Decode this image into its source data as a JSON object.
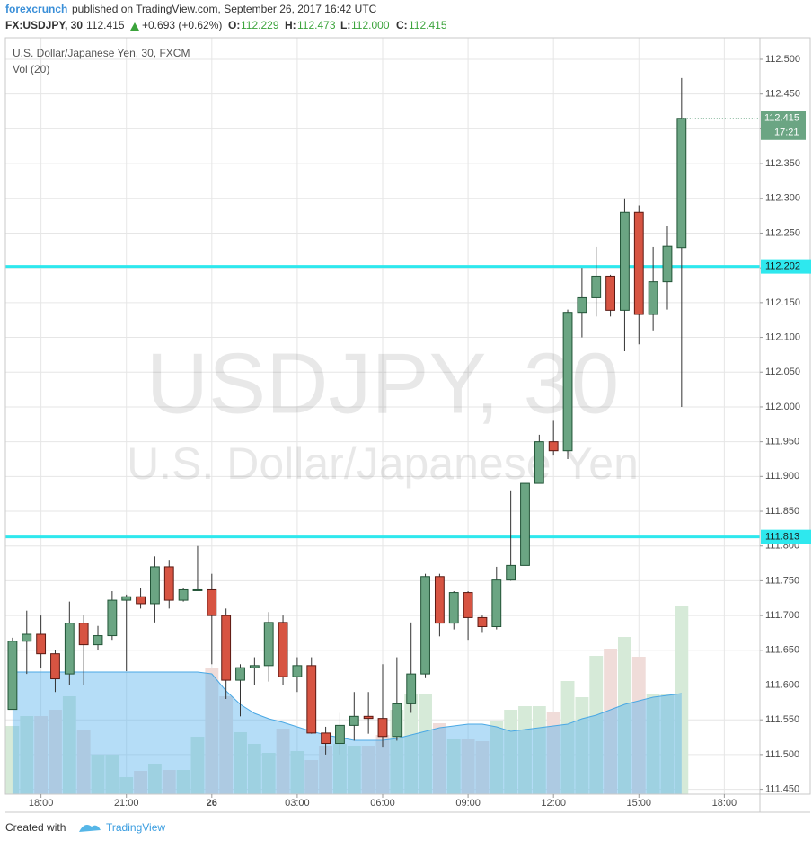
{
  "header": {
    "publisher": "forexcrunch",
    "published": "published on TradingView.com, September 26, 2017 16:42 UTC",
    "symbol": "FX:USDJPY, 30",
    "last": "112.415",
    "change": "+0.693 (+0.62%)",
    "o_label": "O:",
    "o": "112.229",
    "h_label": "H:",
    "h": "112.473",
    "l_label": "L:",
    "l": "112.000",
    "c_label": "C:",
    "c": "112.415"
  },
  "chart_data": {
    "type": "candlestick",
    "legend_title": "U.S. Dollar/Japanese Yen, 30, FXCM",
    "volume_title": "Vol (20)",
    "watermark": "USDJPY, 30",
    "watermark_sub": "U.S. Dollar/Japanese Yen",
    "open": [
      111.565,
      111.663,
      111.673,
      111.645,
      111.616,
      111.689,
      111.658,
      111.671,
      111.722,
      111.727,
      111.717,
      111.77,
      111.722,
      111.737,
      111.737,
      111.7,
      111.607,
      111.625,
      111.628,
      111.69,
      111.612,
      111.628,
      111.531,
      111.516,
      111.542,
      111.555,
      111.552,
      111.526,
      111.573,
      111.616,
      111.756,
      111.689,
      111.733,
      111.697,
      111.684,
      111.751,
      111.772,
      111.89,
      111.95,
      111.937,
      112.136,
      112.157,
      112.188,
      112.139,
      112.28,
      112.133,
      112.18,
      112.229
    ],
    "high": [
      111.668,
      111.707,
      111.7,
      111.65,
      111.72,
      111.7,
      111.685,
      111.735,
      111.73,
      111.74,
      111.785,
      111.78,
      111.74,
      111.8,
      111.76,
      111.71,
      111.63,
      111.64,
      111.705,
      111.7,
      111.64,
      111.64,
      111.54,
      111.56,
      111.59,
      111.59,
      111.63,
      111.64,
      111.69,
      111.76,
      111.76,
      111.735,
      111.735,
      111.7,
      111.77,
      111.88,
      111.895,
      111.96,
      111.98,
      112.14,
      112.2,
      112.23,
      112.19,
      112.3,
      112.29,
      112.23,
      112.26,
      112.473
    ],
    "low": [
      111.565,
      111.616,
      111.625,
      111.59,
      111.6,
      111.6,
      111.65,
      111.665,
      111.62,
      111.71,
      111.69,
      111.71,
      111.72,
      111.737,
      111.63,
      111.58,
      111.555,
      111.6,
      111.605,
      111.6,
      111.59,
      111.53,
      111.5,
      111.5,
      111.52,
      111.53,
      111.51,
      111.52,
      111.56,
      111.61,
      111.67,
      111.68,
      111.665,
      111.675,
      111.68,
      111.75,
      111.745,
      111.89,
      111.93,
      111.925,
      112.1,
      112.13,
      112.13,
      112.08,
      112.09,
      112.11,
      112.14,
      112.0
    ],
    "close": [
      111.663,
      111.673,
      111.645,
      111.609,
      111.689,
      111.658,
      111.671,
      111.722,
      111.727,
      111.717,
      111.77,
      111.722,
      111.737,
      111.737,
      111.7,
      111.607,
      111.625,
      111.628,
      111.69,
      111.612,
      111.628,
      111.531,
      111.516,
      111.542,
      111.555,
      111.552,
      111.526,
      111.573,
      111.616,
      111.756,
      111.689,
      111.733,
      111.697,
      111.684,
      111.751,
      111.772,
      111.89,
      111.95,
      111.937,
      112.136,
      112.157,
      112.188,
      112.139,
      112.28,
      112.133,
      112.18,
      112.231,
      112.415
    ],
    "volume": [
      76,
      87,
      87,
      94,
      109,
      72,
      44,
      44,
      19,
      26,
      34,
      27,
      27,
      64,
      141,
      109,
      69,
      56,
      46,
      73,
      48,
      38,
      54,
      56,
      54,
      54,
      66,
      94,
      112,
      112,
      79,
      61,
      61,
      59,
      81,
      94,
      98,
      98,
      91,
      126,
      108,
      154,
      162,
      175,
      153,
      112,
      112,
      210
    ],
    "volume_ma": [
      136,
      136,
      136,
      136,
      136,
      136,
      136,
      136,
      136,
      136,
      136,
      136,
      136,
      136,
      134,
      115,
      100,
      90,
      84,
      80,
      75,
      70,
      66,
      63,
      60,
      60,
      60,
      62,
      66,
      70,
      74,
      76,
      78,
      78,
      75,
      70,
      72,
      74,
      76,
      78,
      84,
      88,
      94,
      100,
      104,
      108,
      110,
      112
    ],
    "up_color": "#6ba583",
    "down_color": "#d75442",
    "level_color": "#2ee8ee",
    "levels": [
      {
        "value": 112.202,
        "label": "112.202"
      },
      {
        "value": 111.813,
        "label": "111.813"
      }
    ],
    "last_price": {
      "value": 112.415,
      "label": "112.415",
      "countdown": "17:21"
    },
    "ylim": [
      111.443,
      112.531
    ],
    "yticks": [
      {
        "value": 111.45,
        "label": "111.450"
      },
      {
        "value": 111.5,
        "label": "111.500"
      },
      {
        "value": 111.55,
        "label": "111.550"
      },
      {
        "value": 111.6,
        "label": "111.600"
      },
      {
        "value": 111.65,
        "label": "111.650"
      },
      {
        "value": 111.7,
        "label": "111.700"
      },
      {
        "value": 111.75,
        "label": "111.750"
      },
      {
        "value": 111.8,
        "label": "111.800"
      },
      {
        "value": 111.85,
        "label": "111.850"
      },
      {
        "value": 111.9,
        "label": "111.900"
      },
      {
        "value": 111.95,
        "label": "111.950"
      },
      {
        "value": 112,
        "label": "112.000"
      },
      {
        "value": 112.05,
        "label": "112.050"
      },
      {
        "value": 112.1,
        "label": "112.100"
      },
      {
        "value": 112.15,
        "label": "112.150"
      },
      {
        "value": 112.2,
        "label": "112.200"
      },
      {
        "value": 112.25,
        "label": "112.250"
      },
      {
        "value": 112.3,
        "label": "112.300"
      },
      {
        "value": 112.35,
        "label": "112.350"
      },
      {
        "value": 112.4,
        "label": "112.400"
      },
      {
        "value": 112.45,
        "label": "112.450"
      },
      {
        "value": 112.5,
        "label": "112.500"
      }
    ],
    "xlim": [
      -0.5,
      52.5
    ],
    "xticks": [
      {
        "value": 2,
        "label": "18:00"
      },
      {
        "value": 8,
        "label": "21:00"
      },
      {
        "value": 14,
        "label": "26"
      },
      {
        "value": 20,
        "label": "03:00"
      },
      {
        "value": 26,
        "label": "06:00"
      },
      {
        "value": 32,
        "label": "09:00"
      },
      {
        "value": 38,
        "label": "12:00"
      },
      {
        "value": 44,
        "label": "15:00"
      },
      {
        "value": 50,
        "label": "18:00"
      }
    ],
    "grid": true
  },
  "footer": {
    "created": "Created with",
    "brand": "TradingView"
  }
}
